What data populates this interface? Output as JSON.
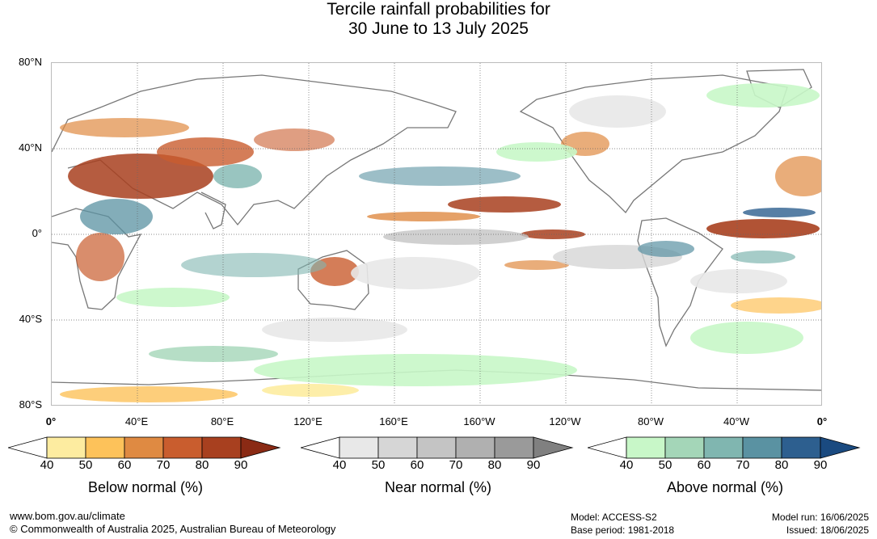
{
  "title": {
    "line1": "Tercile rainfall probabilities for",
    "line2": "30 June to 13 July 2025"
  },
  "map": {
    "lat_labels": [
      "80°N",
      "40°N",
      "0°",
      "40°S",
      "80°S"
    ],
    "lon_labels": [
      "0°",
      "40°E",
      "80°E",
      "120°E",
      "160°E",
      "160°W",
      "120°W",
      "80°W",
      "40°W",
      "0°"
    ],
    "grid": true
  },
  "legends": [
    {
      "title": "Below normal (%)",
      "ticks": [
        "40",
        "50",
        "60",
        "70",
        "80",
        "90"
      ],
      "colors": [
        "#ffffff",
        "#fdeca0",
        "#fdc25a",
        "#df8a42",
        "#c95d2e",
        "#a8401f",
        "#8a2a14"
      ]
    },
    {
      "title": "Near normal (%)",
      "ticks": [
        "40",
        "50",
        "60",
        "70",
        "80",
        "90"
      ],
      "colors": [
        "#ffffff",
        "#e8e8e8",
        "#d6d6d6",
        "#c4c4c4",
        "#b0b0b0",
        "#9a9a9a",
        "#808080"
      ]
    },
    {
      "title": "Above normal (%)",
      "ticks": [
        "40",
        "50",
        "60",
        "70",
        "80",
        "90"
      ],
      "colors": [
        "#ffffff",
        "#c8f7c8",
        "#a4d6b8",
        "#80b6b0",
        "#5a92a2",
        "#2d5f8f",
        "#1a4a80"
      ]
    }
  ],
  "footer": {
    "url": "www.bom.gov.au/climate",
    "copyright": "© Commonwealth of Australia 2025, Australian Bureau of Meteorology",
    "model": "Model: ACCESS-S2",
    "base_period": "Base period: 1981-2018",
    "model_run": "Model run: 16/06/2025",
    "issued": "Issued: 18/06/2025"
  }
}
